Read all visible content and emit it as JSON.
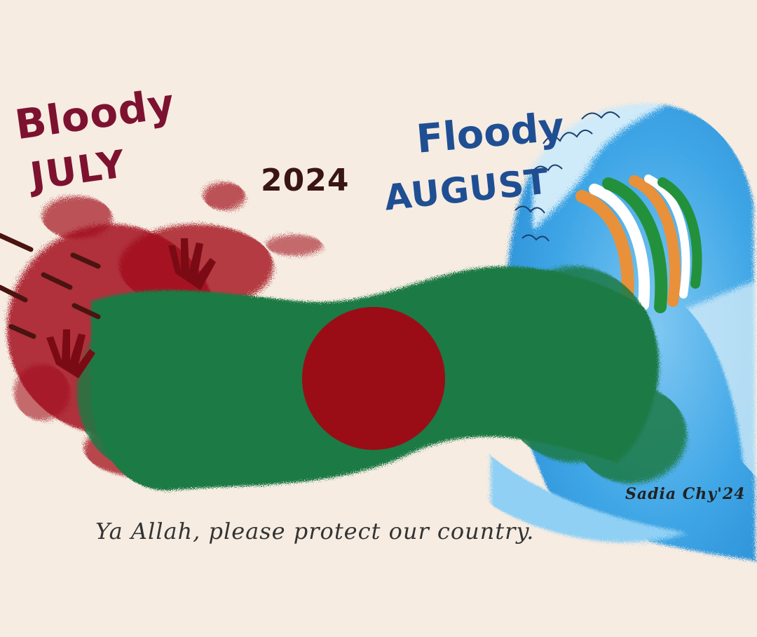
{
  "artwork": {
    "background_color": "#f6ece2",
    "headline_left": {
      "line1": "Bloody",
      "line2": "JULY",
      "color": "#7d1230"
    },
    "year": "2024",
    "headline_right": {
      "line1": "Floody",
      "line2": "AUGUST",
      "color": "#1f4f92"
    },
    "prayer": "Ya Allah, please protect our country.",
    "signature": "Sadia Chy'24",
    "colors": {
      "flag_green": "#1f7a45",
      "flag_red": "#9a0d16",
      "blood_red": "#a3101c",
      "wave_blue": "#3fa6e6",
      "wave_light": "#cfeaf8",
      "saffron": "#e8913a",
      "white": "#ffffff",
      "india_green": "#23913b"
    },
    "icons": [
      "handprint-icon",
      "bullet-icon",
      "ocean-wave-icon",
      "flag-stripes-icon"
    ]
  }
}
